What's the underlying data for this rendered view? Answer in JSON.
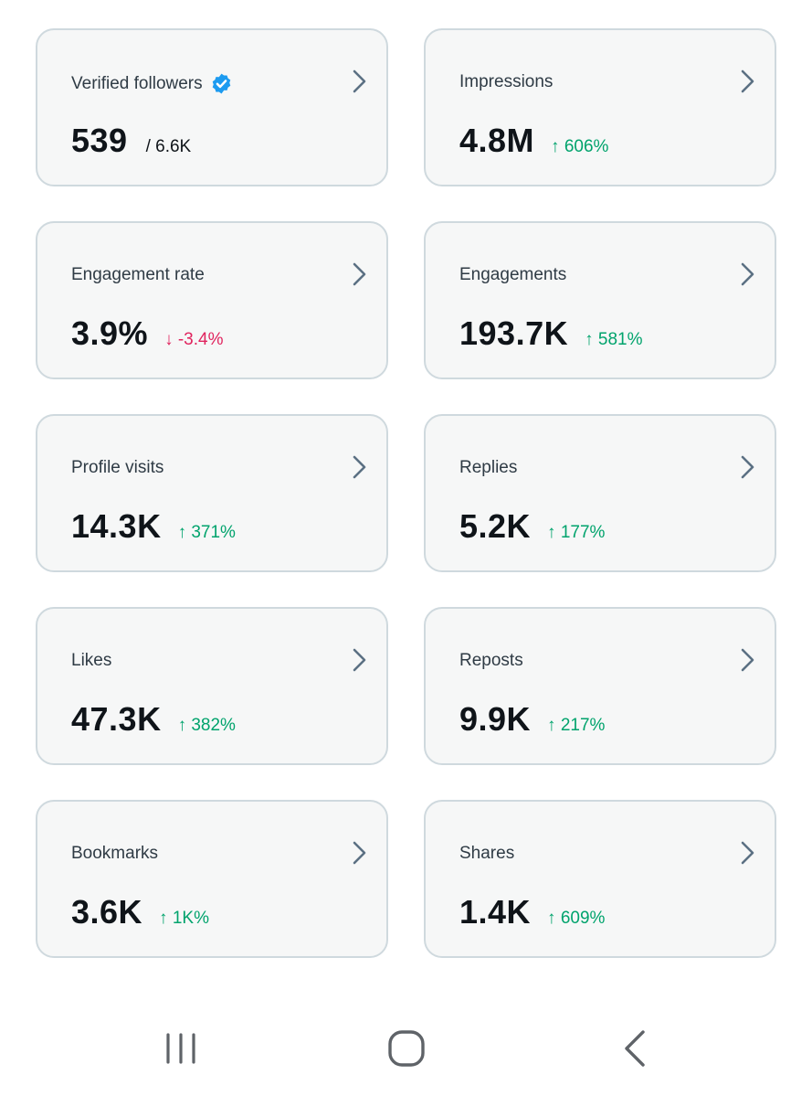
{
  "cards": [
    {
      "title": "Verified followers",
      "value": "539",
      "sub": "/ 6.6K"
    },
    {
      "title": "Impressions",
      "value": "4.8M",
      "change": "↑ 606%"
    },
    {
      "title": "Engagement rate",
      "value": "3.9%",
      "change": "↓ -3.4%"
    },
    {
      "title": "Engagements",
      "value": "193.7K",
      "change": "↑ 581%"
    },
    {
      "title": "Profile visits",
      "value": "14.3K",
      "change": "↑ 371%"
    },
    {
      "title": "Replies",
      "value": "5.2K",
      "change": "↑ 177%"
    },
    {
      "title": "Likes",
      "value": "47.3K",
      "change": "↑ 382%"
    },
    {
      "title": "Reposts",
      "value": "9.9K",
      "change": "↑ 217%"
    },
    {
      "title": "Bookmarks",
      "value": "3.6K",
      "change": "↑ 1K%"
    },
    {
      "title": "Shares",
      "value": "1.4K",
      "change": "↑ 609%"
    }
  ],
  "icons": {
    "verified": "verified-badge-icon",
    "chevron": "chevron-right-icon",
    "nav": [
      "recent-apps-icon",
      "home-icon",
      "back-icon"
    ]
  },
  "colors": {
    "up": "#00a36c",
    "down": "#e0245e",
    "verified": "#1d9bf0",
    "card_bg": "#f6f7f7",
    "card_border": "#cfd9de"
  }
}
